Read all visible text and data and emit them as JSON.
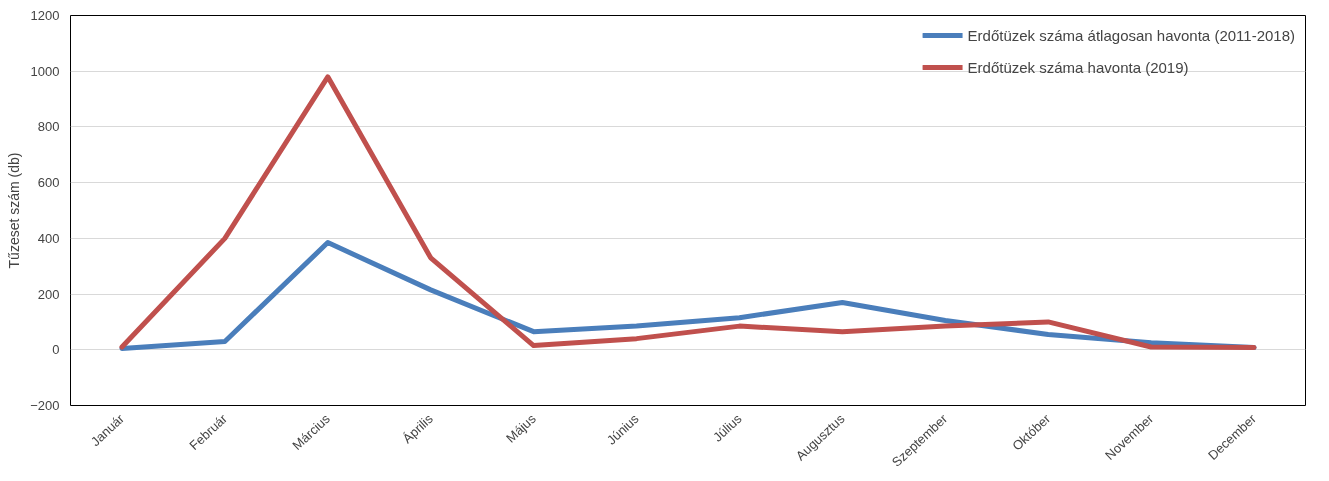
{
  "chart_data": {
    "type": "line",
    "ylabel": "Tűzeset szám (db)",
    "categories": [
      "Január",
      "Február",
      "Március",
      "Április",
      "Május",
      "Június",
      "Július",
      "Augusztus",
      "Szeptember",
      "Október",
      "November",
      "December"
    ],
    "series": [
      {
        "name": "Erdőtüzek száma átlagosan havonta (2011-2018)",
        "color": "#4a7ebb",
        "values": [
          5,
          30,
          385,
          215,
          65,
          85,
          115,
          170,
          105,
          55,
          25,
          8
        ]
      },
      {
        "name": "Erdőtüzek száma havonta (2019)",
        "color": "#c0504d",
        "values": [
          10,
          400,
          980,
          330,
          15,
          40,
          85,
          65,
          85,
          100,
          10,
          8
        ]
      }
    ],
    "ylim": [
      -200,
      1200
    ],
    "yticks": [
      -200,
      0,
      200,
      400,
      600,
      800,
      1000,
      1200
    ],
    "grid": "y",
    "legend": "top right",
    "line_style": "solid",
    "marker": "none"
  }
}
